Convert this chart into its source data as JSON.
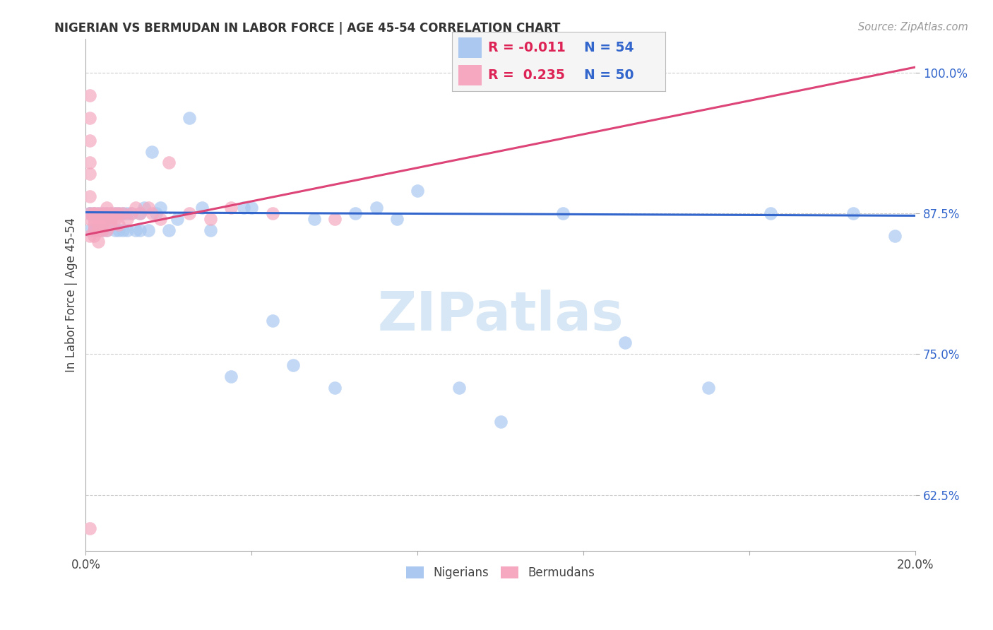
{
  "title": "NIGERIAN VS BERMUDAN IN LABOR FORCE | AGE 45-54 CORRELATION CHART",
  "source": "Source: ZipAtlas.com",
  "ylabel": "In Labor Force | Age 45-54",
  "xlim": [
    0.0,
    0.2
  ],
  "ylim": [
    0.575,
    1.03
  ],
  "yticks": [
    0.625,
    0.75,
    0.875,
    1.0
  ],
  "ytick_labels": [
    "62.5%",
    "75.0%",
    "87.5%",
    "100.0%"
  ],
  "xticks": [
    0.0,
    0.04,
    0.08,
    0.12,
    0.16,
    0.2
  ],
  "xtick_labels": [
    "0.0%",
    "",
    "",
    "",
    "",
    "20.0%"
  ],
  "blue_color": "#aac8f0",
  "pink_color": "#f5a8c0",
  "blue_line_color": "#3366cc",
  "pink_line_color": "#dd4477",
  "background_color": "#ffffff",
  "grid_color": "#cccccc",
  "watermark": "ZIPatlas",
  "legend_R_blue": "-0.011",
  "legend_N_blue": "54",
  "legend_R_pink": "0.235",
  "legend_N_pink": "50",
  "nigerians_x": [
    0.001,
    0.001,
    0.001,
    0.002,
    0.002,
    0.003,
    0.003,
    0.004,
    0.004,
    0.005,
    0.005,
    0.006,
    0.006,
    0.007,
    0.007,
    0.008,
    0.008,
    0.009,
    0.009,
    0.01,
    0.01,
    0.011,
    0.012,
    0.013,
    0.013,
    0.014,
    0.015,
    0.016,
    0.017,
    0.018,
    0.02,
    0.022,
    0.025,
    0.028,
    0.03,
    0.035,
    0.038,
    0.04,
    0.045,
    0.05,
    0.055,
    0.06,
    0.065,
    0.07,
    0.075,
    0.08,
    0.09,
    0.1,
    0.115,
    0.13,
    0.15,
    0.165,
    0.185,
    0.195
  ],
  "nigerians_y": [
    0.875,
    0.86,
    0.875,
    0.875,
    0.86,
    0.875,
    0.86,
    0.875,
    0.86,
    0.875,
    0.86,
    0.875,
    0.87,
    0.875,
    0.86,
    0.875,
    0.86,
    0.875,
    0.86,
    0.875,
    0.86,
    0.875,
    0.86,
    0.875,
    0.86,
    0.88,
    0.86,
    0.93,
    0.875,
    0.88,
    0.86,
    0.87,
    0.96,
    0.88,
    0.86,
    0.73,
    0.88,
    0.88,
    0.78,
    0.74,
    0.87,
    0.72,
    0.875,
    0.88,
    0.87,
    0.895,
    0.72,
    0.69,
    0.875,
    0.76,
    0.72,
    0.875,
    0.875,
    0.855
  ],
  "bermudans_x": [
    0.001,
    0.001,
    0.001,
    0.001,
    0.001,
    0.001,
    0.001,
    0.001,
    0.001,
    0.002,
    0.002,
    0.002,
    0.002,
    0.002,
    0.002,
    0.003,
    0.003,
    0.003,
    0.003,
    0.003,
    0.004,
    0.004,
    0.004,
    0.004,
    0.005,
    0.005,
    0.005,
    0.005,
    0.006,
    0.006,
    0.006,
    0.007,
    0.007,
    0.008,
    0.008,
    0.009,
    0.01,
    0.011,
    0.012,
    0.013,
    0.015,
    0.016,
    0.018,
    0.02,
    0.025,
    0.03,
    0.035,
    0.045,
    0.06,
    0.001
  ],
  "bermudans_y": [
    0.98,
    0.96,
    0.94,
    0.92,
    0.91,
    0.89,
    0.875,
    0.87,
    0.855,
    0.875,
    0.87,
    0.865,
    0.86,
    0.875,
    0.855,
    0.875,
    0.87,
    0.865,
    0.86,
    0.85,
    0.875,
    0.87,
    0.865,
    0.86,
    0.88,
    0.875,
    0.87,
    0.86,
    0.875,
    0.87,
    0.865,
    0.875,
    0.87,
    0.875,
    0.865,
    0.875,
    0.87,
    0.875,
    0.88,
    0.875,
    0.88,
    0.875,
    0.87,
    0.92,
    0.875,
    0.87,
    0.88,
    0.875,
    0.87,
    0.595
  ],
  "blue_line_x": [
    0.0,
    0.2
  ],
  "blue_line_y": [
    0.876,
    0.873
  ],
  "pink_line_x": [
    0.0,
    0.2
  ],
  "pink_line_y": [
    0.856,
    1.005
  ]
}
